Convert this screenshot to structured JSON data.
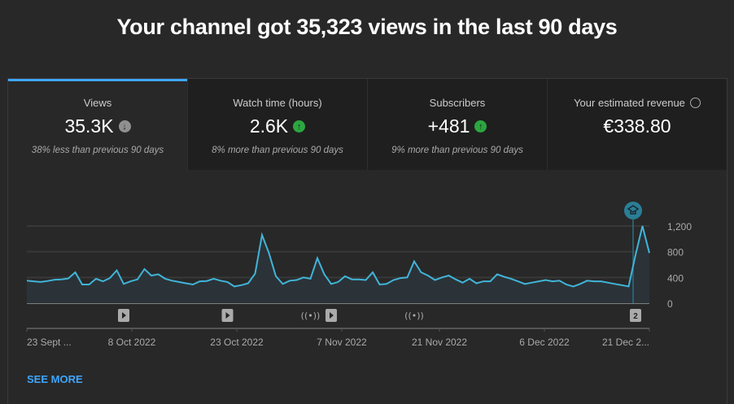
{
  "header": {
    "title": "Your channel got 35,323 views in the last 90 days"
  },
  "tabs": [
    {
      "label": "Views",
      "value": "35.3K",
      "trend": "down",
      "comparison": "38% less than previous 90 days",
      "selected": true
    },
    {
      "label": "Watch time (hours)",
      "value": "2.6K",
      "trend": "up",
      "comparison": "8% more than previous 90 days"
    },
    {
      "label": "Subscribers",
      "value": "+481",
      "trend": "up",
      "comparison": "9% more than previous 90 days"
    },
    {
      "label": "Your estimated revenue",
      "value": "€338.80",
      "icon": "clock-icon"
    }
  ],
  "colors": {
    "accent": "#3ea6ff",
    "line": "#41b4d8",
    "up": "#2ba640",
    "down": "#909090"
  },
  "chart_data": {
    "type": "area",
    "ylim": [
      0,
      1200
    ],
    "yticks": [
      "0",
      "400",
      "800",
      "1,200"
    ],
    "xtick_labels": [
      "23 Sept ...",
      "8 Oct 2022",
      "23 Oct 2022",
      "7 Nov 2022",
      "21 Nov 2022",
      "6 Dec 2022",
      "21 Dec 2..."
    ],
    "values": [
      350,
      340,
      330,
      345,
      365,
      370,
      385,
      480,
      290,
      290,
      380,
      340,
      390,
      510,
      300,
      340,
      370,
      530,
      430,
      450,
      380,
      350,
      330,
      310,
      290,
      340,
      345,
      380,
      350,
      330,
      260,
      280,
      310,
      460,
      1060,
      780,
      420,
      300,
      350,
      360,
      400,
      380,
      700,
      450,
      300,
      330,
      420,
      370,
      370,
      360,
      480,
      290,
      300,
      360,
      390,
      400,
      650,
      480,
      430,
      360,
      400,
      430,
      370,
      320,
      380,
      310,
      340,
      340,
      450,
      410,
      380,
      340,
      300,
      320,
      340,
      360,
      340,
      350,
      290,
      260,
      300,
      350,
      340,
      340,
      320,
      300,
      280,
      260,
      750,
      1200,
      780
    ],
    "markers": [
      {
        "type": "video",
        "day": 14
      },
      {
        "type": "video",
        "day": 29
      },
      {
        "type": "live",
        "day": 41
      },
      {
        "type": "video",
        "day": 44
      },
      {
        "type": "live",
        "day": 56
      },
      {
        "type": "group",
        "label": "2",
        "day": 88
      }
    ],
    "milestone_icon": "graduation-cap-icon"
  },
  "footer": {
    "see_more": "SEE MORE"
  }
}
